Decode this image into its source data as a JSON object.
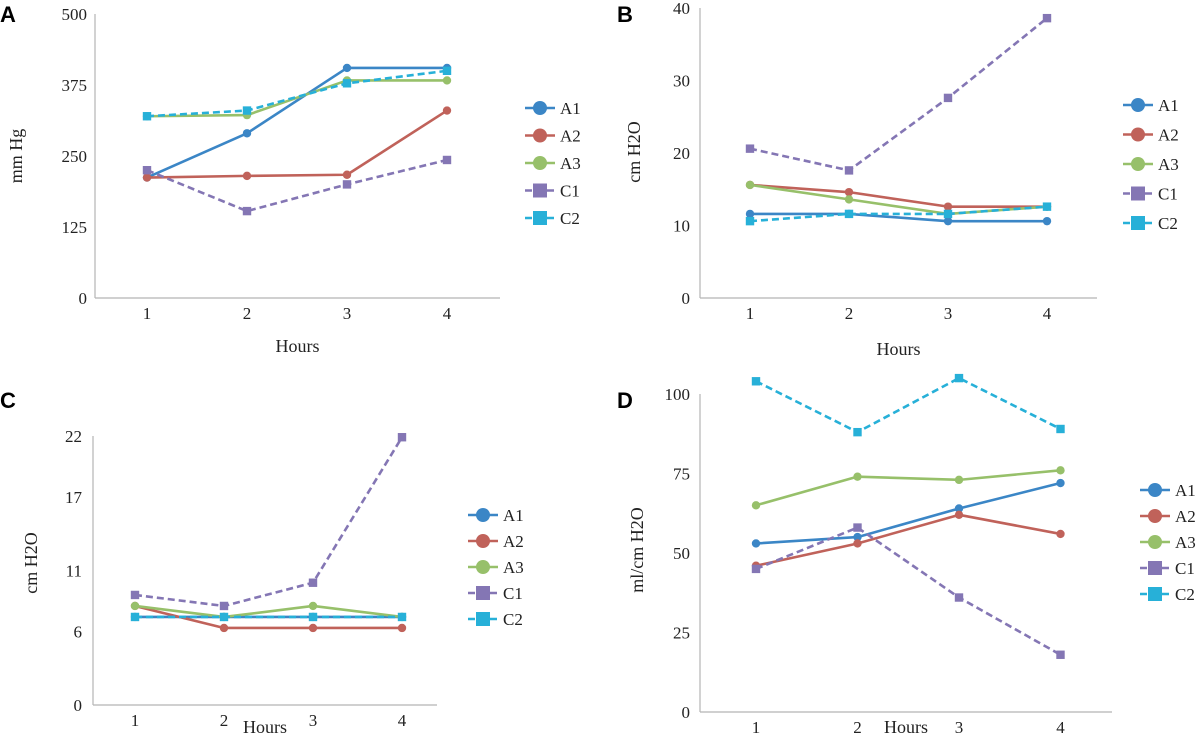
{
  "figure": {
    "series_styles": {
      "A1": {
        "color": "#3b86c6",
        "dash": "solid",
        "marker": "circle"
      },
      "A2": {
        "color": "#c0625a",
        "dash": "solid",
        "marker": "circle"
      },
      "A3": {
        "color": "#97c06a",
        "dash": "solid",
        "marker": "circle"
      },
      "C1": {
        "color": "#8476b4",
        "dash": "dashed",
        "marker": "square"
      },
      "C2": {
        "color": "#27b0d8",
        "dash": "dashed",
        "marker": "square"
      }
    }
  },
  "chart_data": [
    {
      "panel": "A",
      "type": "line",
      "xlabel": "Hours",
      "ylabel": "mm Hg",
      "x": [
        1,
        2,
        3,
        4
      ],
      "x_ticks": [
        "1",
        "2",
        "3",
        "4"
      ],
      "y_ticks": [
        "0",
        "125",
        "250",
        "375",
        "500"
      ],
      "ylim": [
        0,
        500
      ],
      "series": [
        {
          "name": "A1",
          "values": [
            212,
            290,
            405,
            405
          ]
        },
        {
          "name": "A2",
          "values": [
            212,
            215,
            217,
            330
          ]
        },
        {
          "name": "A3",
          "values": [
            320,
            322,
            383,
            383
          ]
        },
        {
          "name": "C1",
          "values": [
            225,
            153,
            200,
            243
          ]
        },
        {
          "name": "C2",
          "values": [
            320,
            330,
            378,
            400
          ]
        }
      ]
    },
    {
      "panel": "B",
      "type": "line",
      "xlabel": "Hours",
      "ylabel": "cm H2O",
      "x": [
        1,
        2,
        3,
        4
      ],
      "x_ticks": [
        "1",
        "2",
        "3",
        "4"
      ],
      "y_ticks": [
        "0",
        "10",
        "20",
        "30",
        "40"
      ],
      "ylim": [
        0,
        40
      ],
      "series": [
        {
          "name": "A1",
          "values": [
            11.6,
            11.6,
            10.6,
            10.6
          ]
        },
        {
          "name": "A2",
          "values": [
            15.6,
            14.6,
            12.6,
            12.6
          ]
        },
        {
          "name": "A3",
          "values": [
            15.6,
            13.6,
            11.6,
            12.6
          ]
        },
        {
          "name": "C1",
          "values": [
            20.6,
            17.6,
            27.6,
            38.6
          ]
        },
        {
          "name": "C2",
          "values": [
            10.6,
            11.6,
            11.6,
            12.6
          ]
        }
      ]
    },
    {
      "panel": "C",
      "type": "line",
      "xlabel": "Hours",
      "ylabel": "cm H2O",
      "x": [
        1,
        2,
        3,
        4
      ],
      "x_ticks": [
        "1",
        "2",
        "3",
        "4"
      ],
      "y_ticks": [
        "0",
        "6",
        "11",
        "17",
        "22"
      ],
      "ylim": [
        0,
        22
      ],
      "series": [
        {
          "name": "A1",
          "values": [
            7.2,
            7.2,
            7.2,
            7.2
          ]
        },
        {
          "name": "A2",
          "values": [
            8.1,
            6.3,
            6.3,
            6.3
          ]
        },
        {
          "name": "A3",
          "values": [
            8.1,
            7.2,
            8.1,
            7.2
          ]
        },
        {
          "name": "C1",
          "values": [
            9.0,
            8.1,
            10.0,
            21.9
          ]
        },
        {
          "name": "C2",
          "values": [
            7.2,
            7.2,
            7.2,
            7.2
          ]
        }
      ]
    },
    {
      "panel": "D",
      "type": "line",
      "xlabel": "Hours",
      "ylabel": "ml/cm H2O",
      "x": [
        1,
        2,
        3,
        4
      ],
      "x_ticks": [
        "1",
        "2",
        "3",
        "4"
      ],
      "y_ticks": [
        "0",
        "25",
        "50",
        "75",
        "100"
      ],
      "ylim": [
        0,
        100
      ],
      "series": [
        {
          "name": "A1",
          "values": [
            53,
            55,
            64,
            72
          ]
        },
        {
          "name": "A2",
          "values": [
            46,
            53,
            62,
            56
          ]
        },
        {
          "name": "A3",
          "values": [
            65,
            74,
            73,
            76
          ]
        },
        {
          "name": "C1",
          "values": [
            45,
            58,
            36,
            18
          ]
        },
        {
          "name": "C2",
          "values": [
            104,
            88,
            105,
            89
          ]
        }
      ]
    }
  ]
}
